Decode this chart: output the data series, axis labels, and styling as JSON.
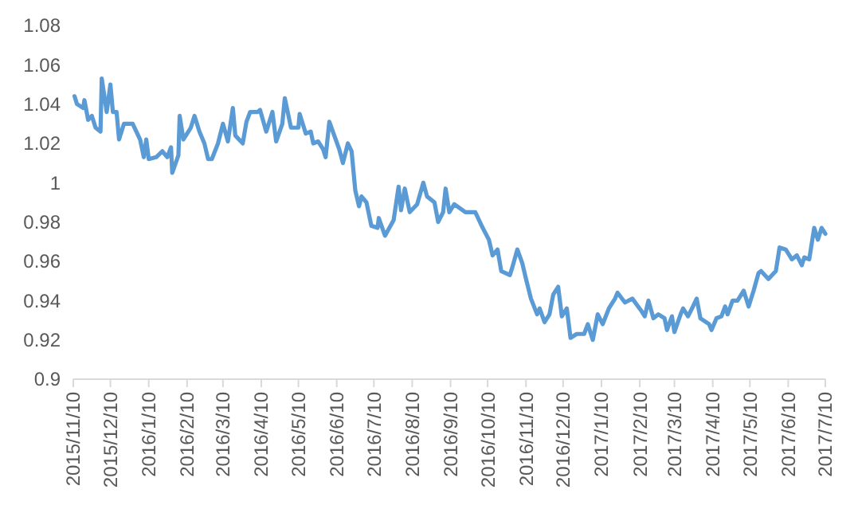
{
  "chart_data": {
    "type": "line",
    "x": [
      "2015-11-11",
      "2015-11-13",
      "2015-11-18",
      "2015-11-19",
      "2015-11-22",
      "2015-11-25",
      "2015-11-28",
      "2015-12-02",
      "2015-12-03",
      "2015-12-07",
      "2015-12-10",
      "2015-12-12",
      "2015-12-15",
      "2015-12-17",
      "2015-12-21",
      "2015-12-28",
      "2016-01-03",
      "2016-01-06",
      "2016-01-08",
      "2016-01-10",
      "2016-01-16",
      "2016-01-21",
      "2016-01-25",
      "2016-01-28",
      "2016-01-29",
      "2016-02-03",
      "2016-02-04",
      "2016-02-07",
      "2016-02-13",
      "2016-02-16",
      "2016-02-20",
      "2016-02-24",
      "2016-02-27",
      "2016-03-01",
      "2016-03-06",
      "2016-03-10",
      "2016-03-14",
      "2016-03-18",
      "2016-03-20",
      "2016-03-26",
      "2016-03-29",
      "2016-04-01",
      "2016-04-07",
      "2016-04-09",
      "2016-04-14",
      "2016-04-19",
      "2016-04-22",
      "2016-04-27",
      "2016-04-29",
      "2016-05-04",
      "2016-05-10",
      "2016-05-11",
      "2016-05-16",
      "2016-05-20",
      "2016-05-22",
      "2016-05-26",
      "2016-05-30",
      "2016-06-01",
      "2016-06-04",
      "2016-06-08",
      "2016-06-12",
      "2016-06-15",
      "2016-06-19",
      "2016-06-22",
      "2016-06-25",
      "2016-06-28",
      "2016-06-30",
      "2016-07-04",
      "2016-07-08",
      "2016-07-13",
      "2016-07-14",
      "2016-07-19",
      "2016-07-26",
      "2016-07-30",
      "2016-08-01",
      "2016-08-04",
      "2016-08-08",
      "2016-08-14",
      "2016-08-19",
      "2016-08-22",
      "2016-08-28",
      "2016-08-31",
      "2016-09-04",
      "2016-09-06",
      "2016-09-09",
      "2016-09-13",
      "2016-09-22",
      "2016-09-30",
      "2016-10-06",
      "2016-10-11",
      "2016-10-14",
      "2016-10-18",
      "2016-10-21",
      "2016-10-28",
      "2016-10-30",
      "2016-11-03",
      "2016-11-07",
      "2016-11-10",
      "2016-11-14",
      "2016-11-19",
      "2016-11-21",
      "2016-11-25",
      "2016-11-29",
      "2016-12-02",
      "2016-12-06",
      "2016-12-09",
      "2016-12-13",
      "2016-12-16",
      "2016-12-21",
      "2016-12-27",
      "2016-12-30",
      "2017-01-03",
      "2017-01-07",
      "2017-01-11",
      "2017-01-16",
      "2017-01-21",
      "2017-01-23",
      "2017-01-29",
      "2017-02-04",
      "2017-02-11",
      "2017-02-14",
      "2017-02-17",
      "2017-02-21",
      "2017-02-25",
      "2017-03-02",
      "2017-03-04",
      "2017-03-08",
      "2017-03-10",
      "2017-03-15",
      "2017-03-17",
      "2017-03-21",
      "2017-03-25",
      "2017-03-28",
      "2017-03-31",
      "2017-04-07",
      "2017-04-09",
      "2017-04-13",
      "2017-04-17",
      "2017-04-20",
      "2017-04-22",
      "2017-04-26",
      "2017-04-30",
      "2017-05-05",
      "2017-05-09",
      "2017-05-13",
      "2017-05-17",
      "2017-05-19",
      "2017-05-25",
      "2017-05-31",
      "2017-06-03",
      "2017-06-08",
      "2017-06-13",
      "2017-06-17",
      "2017-06-21",
      "2017-06-23",
      "2017-06-27",
      "2017-07-01",
      "2017-07-04",
      "2017-07-07",
      "2017-07-10"
    ],
    "series": [
      {
        "color": "#5b9bd5",
        "values": [
          1.044,
          1.04,
          1.038,
          1.042,
          1.032,
          1.034,
          1.028,
          1.026,
          1.053,
          1.036,
          1.05,
          1.036,
          1.036,
          1.022,
          1.03,
          1.03,
          1.022,
          1.013,
          1.022,
          1.012,
          1.013,
          1.016,
          1.013,
          1.018,
          1.005,
          1.014,
          1.034,
          1.022,
          1.028,
          1.034,
          1.026,
          1.02,
          1.012,
          1.012,
          1.02,
          1.03,
          1.021,
          1.038,
          1.024,
          1.02,
          1.031,
          1.036,
          1.036,
          1.037,
          1.026,
          1.036,
          1.021,
          1.03,
          1.043,
          1.028,
          1.028,
          1.035,
          1.025,
          1.026,
          1.02,
          1.021,
          1.017,
          1.013,
          1.031,
          1.024,
          1.017,
          1.01,
          1.02,
          1.016,
          0.996,
          0.988,
          0.993,
          0.99,
          0.978,
          0.977,
          0.982,
          0.973,
          0.981,
          0.998,
          0.986,
          0.997,
          0.985,
          0.989,
          1.0,
          0.993,
          0.99,
          0.98,
          0.985,
          0.997,
          0.985,
          0.989,
          0.985,
          0.985,
          0.977,
          0.971,
          0.963,
          0.966,
          0.955,
          0.953,
          0.957,
          0.966,
          0.959,
          0.951,
          0.941,
          0.933,
          0.936,
          0.929,
          0.933,
          0.943,
          0.947,
          0.932,
          0.936,
          0.921,
          0.923,
          0.923,
          0.928,
          0.92,
          0.933,
          0.928,
          0.936,
          0.941,
          0.944,
          0.939,
          0.941,
          0.935,
          0.932,
          0.94,
          0.931,
          0.933,
          0.931,
          0.925,
          0.932,
          0.924,
          0.933,
          0.936,
          0.932,
          0.937,
          0.941,
          0.931,
          0.928,
          0.925,
          0.931,
          0.932,
          0.937,
          0.933,
          0.94,
          0.94,
          0.945,
          0.937,
          0.945,
          0.954,
          0.955,
          0.951,
          0.955,
          0.967,
          0.966,
          0.961,
          0.963,
          0.958,
          0.962,
          0.961,
          0.977,
          0.971,
          0.977,
          0.974
        ]
      }
    ],
    "xlim": [
      "2015-11-10",
      "2017-07-10"
    ],
    "xticks": [
      {
        "value": "2015-11-10",
        "label": "2015/11/10"
      },
      {
        "value": "2015-12-10",
        "label": "2015/12/10"
      },
      {
        "value": "2016-01-10",
        "label": "2016/1/10"
      },
      {
        "value": "2016-02-10",
        "label": "2016/2/10"
      },
      {
        "value": "2016-03-10",
        "label": "2016/3/10"
      },
      {
        "value": "2016-04-10",
        "label": "2016/4/10"
      },
      {
        "value": "2016-05-10",
        "label": "2016/5/10"
      },
      {
        "value": "2016-06-10",
        "label": "2016/6/10"
      },
      {
        "value": "2016-07-10",
        "label": "2016/7/10"
      },
      {
        "value": "2016-08-10",
        "label": "2016/8/10"
      },
      {
        "value": "2016-09-10",
        "label": "2016/9/10"
      },
      {
        "value": "2016-10-10",
        "label": "2016/10/10"
      },
      {
        "value": "2016-11-10",
        "label": "2016/11/10"
      },
      {
        "value": "2016-12-10",
        "label": "2016/12/10"
      },
      {
        "value": "2017-01-10",
        "label": "2017/1/10"
      },
      {
        "value": "2017-02-10",
        "label": "2017/2/10"
      },
      {
        "value": "2017-03-10",
        "label": "2017/3/10"
      },
      {
        "value": "2017-04-10",
        "label": "2017/4/10"
      },
      {
        "value": "2017-05-10",
        "label": "2017/5/10"
      },
      {
        "value": "2017-06-10",
        "label": "2017/6/10"
      },
      {
        "value": "2017-07-10",
        "label": "2017/7/10"
      }
    ],
    "ylim": [
      0.9,
      1.08
    ],
    "yticks": [
      0.9,
      {
        "value": 0.92,
        "label": "0.92"
      },
      {
        "value": 0.94,
        "label": "0.94"
      },
      {
        "value": 0.96,
        "label": "0.96"
      },
      {
        "value": 0.98,
        "label": "0.98"
      },
      1,
      {
        "value": 1.02,
        "label": "1.02"
      },
      {
        "value": 1.04,
        "label": "1.04"
      },
      {
        "value": 1.06,
        "label": "1.06"
      },
      {
        "value": 1.08,
        "label": "1.08"
      }
    ],
    "line_style": "solid"
  }
}
